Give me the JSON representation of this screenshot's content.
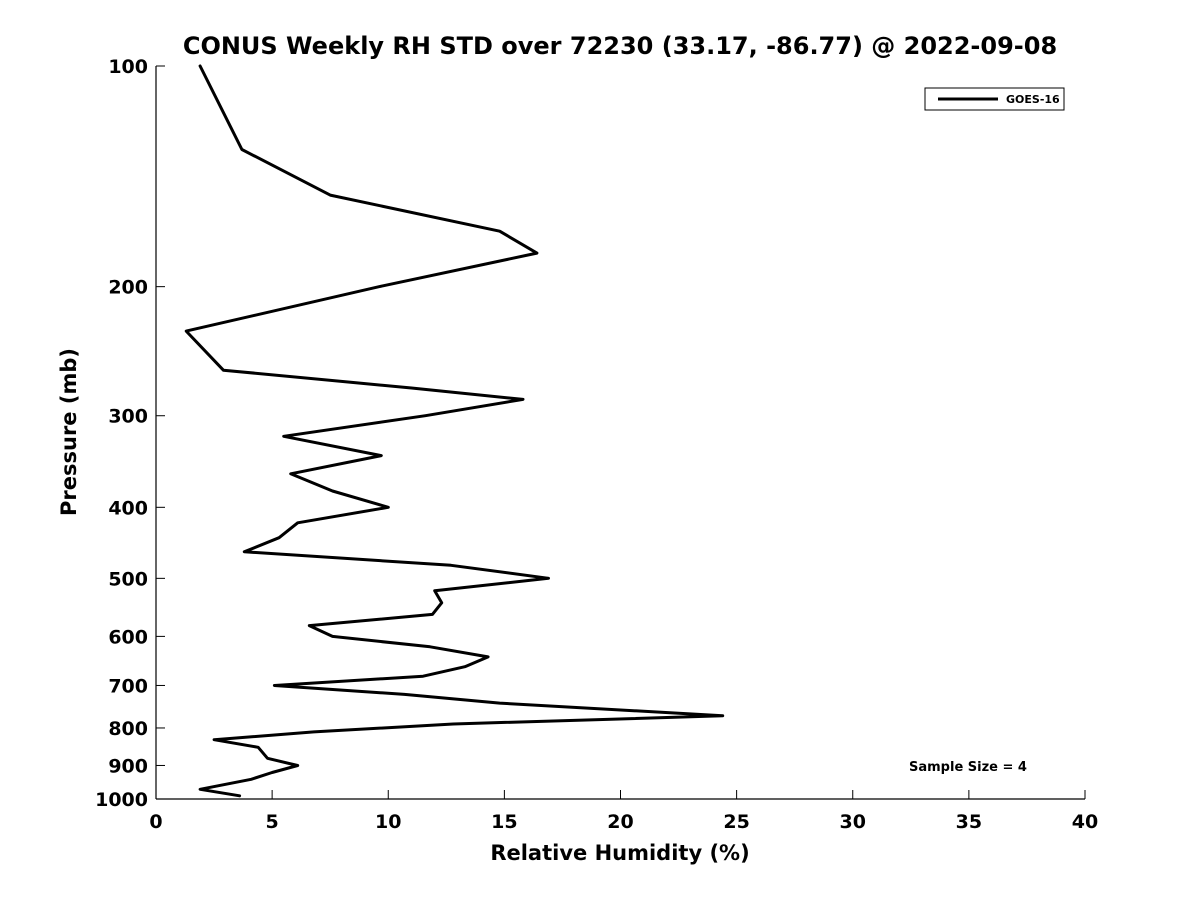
{
  "chart_data": {
    "type": "line",
    "title": "CONUS Weekly RH STD over 72230 (33.17, -86.77) @ 2022-09-08",
    "xlabel": "Relative Humidity (%)",
    "ylabel": "Pressure (mb)",
    "xlim": [
      0,
      40
    ],
    "ylim": [
      100,
      1000
    ],
    "y_scale": "log",
    "y_reversed": true,
    "x_ticks": [
      "0",
      "5",
      "10",
      "15",
      "20",
      "25",
      "30",
      "35",
      "40"
    ],
    "y_ticks": [
      "100",
      "200",
      "300",
      "400",
      "500",
      "600",
      "700",
      "800",
      "900",
      "1000"
    ],
    "grid": false,
    "legend_position": "top-right",
    "annotation": "Sample Size = 4",
    "series": [
      {
        "name": "GOES-16",
        "color": "#000000",
        "x": [
          1.9,
          3.7,
          7.5,
          14.8,
          16.4,
          9.6,
          1.3,
          2.9,
          11.0,
          15.8,
          11.6,
          5.5,
          9.7,
          5.8,
          7.6,
          10.0,
          6.1,
          5.3,
          3.8,
          12.7,
          16.9,
          12.0,
          12.3,
          11.9,
          6.6,
          7.6,
          11.8,
          14.3,
          13.3,
          11.5,
          5.1,
          10.7,
          14.8,
          24.4,
          12.8,
          6.8,
          2.5,
          4.4,
          4.8,
          6.1,
          5.0,
          4.1,
          1.9,
          3.6
        ],
        "y": [
          100,
          130,
          150,
          168,
          180,
          200,
          230,
          260,
          275,
          285,
          300,
          320,
          340,
          360,
          380,
          400,
          420,
          440,
          460,
          480,
          500,
          520,
          540,
          560,
          580,
          600,
          620,
          640,
          660,
          680,
          700,
          720,
          740,
          770,
          790,
          810,
          830,
          850,
          880,
          900,
          920,
          940,
          970,
          990
        ]
      }
    ]
  }
}
